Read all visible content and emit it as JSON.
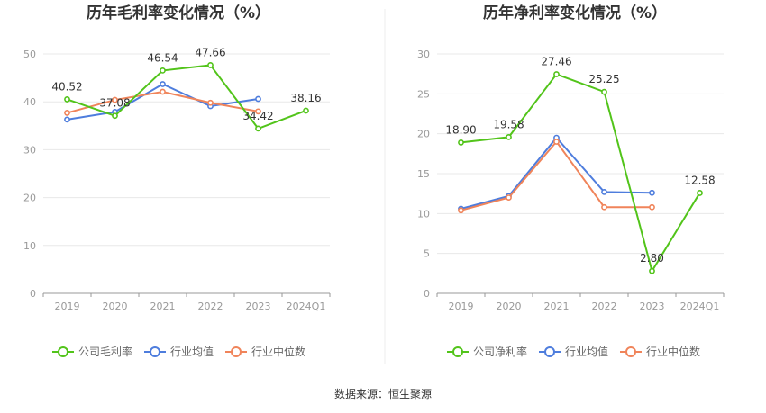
{
  "source": "数据来源：恒生聚源",
  "chart_data": [
    {
      "type": "line",
      "title": "历年毛利率变化情况（%）",
      "categories": [
        "2019",
        "2020",
        "2021",
        "2022",
        "2023",
        "2024Q1"
      ],
      "ylim": [
        0,
        50
      ],
      "yticks": [
        0,
        10,
        20,
        30,
        40,
        50
      ],
      "grid": true,
      "legend_position": "bottom",
      "series": [
        {
          "name": "公司毛利率",
          "color": "#52c41a",
          "values": [
            40.52,
            37.08,
            46.54,
            47.66,
            34.42,
            38.16
          ],
          "labels": true
        },
        {
          "name": "行业均值",
          "color": "#4e7ddd",
          "values": [
            36.3,
            37.9,
            43.7,
            39.1,
            40.6,
            null
          ],
          "labels": false
        },
        {
          "name": "行业中位数",
          "color": "#f0845a",
          "values": [
            37.7,
            40.4,
            42.1,
            39.8,
            38.0,
            null
          ],
          "labels": false
        }
      ]
    },
    {
      "type": "line",
      "title": "历年净利率变化情况（%）",
      "categories": [
        "2019",
        "2020",
        "2021",
        "2022",
        "2023",
        "2024Q1"
      ],
      "ylim": [
        0,
        30
      ],
      "yticks": [
        0,
        5,
        10,
        15,
        20,
        25,
        30
      ],
      "grid": true,
      "legend_position": "bottom",
      "series": [
        {
          "name": "公司净利率",
          "color": "#52c41a",
          "values": [
            18.9,
            19.58,
            27.46,
            25.25,
            2.8,
            12.58
          ],
          "labels": true
        },
        {
          "name": "行业均值",
          "color": "#4e7ddd",
          "values": [
            10.6,
            12.2,
            19.5,
            12.7,
            12.6,
            null
          ],
          "labels": false
        },
        {
          "name": "行业中位数",
          "color": "#f0845a",
          "values": [
            10.4,
            12.0,
            19.0,
            10.8,
            10.8,
            null
          ],
          "labels": false
        }
      ]
    }
  ]
}
